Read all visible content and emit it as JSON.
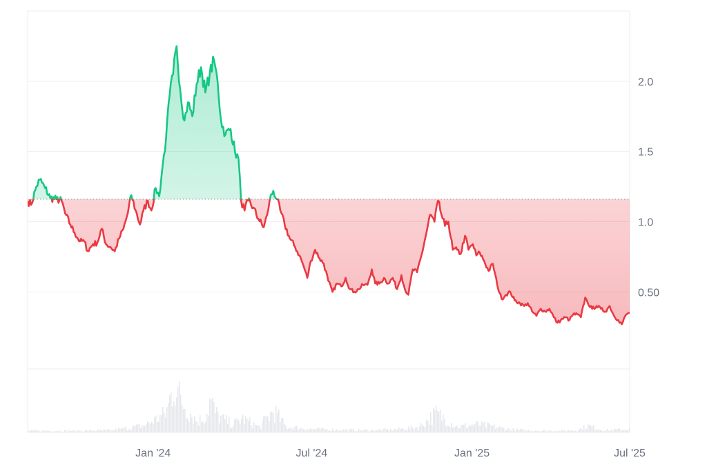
{
  "chart_data": {
    "type": "line",
    "title": "",
    "xlabel": "",
    "ylabel": "",
    "baseline": 1.16,
    "ylim": [
      -0.5,
      2.5
    ],
    "y_ticks": [
      {
        "value": 2.0,
        "label": "2.0"
      },
      {
        "value": 1.5,
        "label": "1.5"
      },
      {
        "value": 1.0,
        "label": "1.0"
      },
      {
        "value": 0.5,
        "label": "0.50"
      }
    ],
    "x_ticks": [
      {
        "date": "2024-01-01",
        "label": "Jan '24"
      },
      {
        "date": "2024-07-01",
        "label": "Jul '24"
      },
      {
        "date": "2025-01-01",
        "label": "Jan '25"
      },
      {
        "date": "2025-07-01",
        "label": "Jul '25"
      }
    ],
    "xlim": [
      "2023-08-10",
      "2025-07-01"
    ],
    "colors": {
      "up_line": "#16c784",
      "down_line": "#ea3943",
      "up_fill": "#16c784",
      "down_fill": "#ea3943",
      "grid": "#eeeeee",
      "baseline": "#888888",
      "volume": "#e6e8ec"
    },
    "price_series": [
      [
        "2023-08-10",
        1.15
      ],
      [
        "2023-08-14",
        1.12
      ],
      [
        "2023-08-20",
        1.25
      ],
      [
        "2023-08-24",
        1.3
      ],
      [
        "2023-08-30",
        1.24
      ],
      [
        "2023-09-05",
        1.17
      ],
      [
        "2023-09-12",
        1.16
      ],
      [
        "2023-09-18",
        1.15
      ],
      [
        "2023-09-22",
        1.06
      ],
      [
        "2023-09-28",
        0.98
      ],
      [
        "2023-10-03",
        0.92
      ],
      [
        "2023-10-09",
        0.86
      ],
      [
        "2023-10-14",
        0.86
      ],
      [
        "2023-10-18",
        0.79
      ],
      [
        "2023-10-24",
        0.84
      ],
      [
        "2023-10-29",
        0.85
      ],
      [
        "2023-11-03",
        0.95
      ],
      [
        "2023-11-08",
        0.84
      ],
      [
        "2023-11-13",
        0.82
      ],
      [
        "2023-11-18",
        0.79
      ],
      [
        "2023-11-23",
        0.88
      ],
      [
        "2023-11-28",
        0.95
      ],
      [
        "2023-12-03",
        1.06
      ],
      [
        "2023-12-07",
        1.19
      ],
      [
        "2023-12-12",
        1.08
      ],
      [
        "2023-12-17",
        0.98
      ],
      [
        "2023-12-21",
        1.08
      ],
      [
        "2023-12-26",
        1.15
      ],
      [
        "2023-12-30",
        1.08
      ],
      [
        "2024-01-04",
        1.24
      ],
      [
        "2024-01-08",
        1.18
      ],
      [
        "2024-01-12",
        1.4
      ],
      [
        "2024-01-16",
        1.6
      ],
      [
        "2024-01-20",
        1.9
      ],
      [
        "2024-01-24",
        2.05
      ],
      [
        "2024-01-28",
        2.25
      ],
      [
        "2024-02-01",
        1.95
      ],
      [
        "2024-02-06",
        1.72
      ],
      [
        "2024-02-10",
        1.85
      ],
      [
        "2024-02-15",
        1.75
      ],
      [
        "2024-02-20",
        1.98
      ],
      [
        "2024-02-25",
        2.1
      ],
      [
        "2024-03-01",
        1.92
      ],
      [
        "2024-03-06",
        2.05
      ],
      [
        "2024-03-11",
        2.15
      ],
      [
        "2024-03-15",
        2.0
      ],
      [
        "2024-03-19",
        1.72
      ],
      [
        "2024-03-24",
        1.62
      ],
      [
        "2024-03-30",
        1.66
      ],
      [
        "2024-04-04",
        1.5
      ],
      [
        "2024-04-08",
        1.45
      ],
      [
        "2024-04-11",
        1.15
      ],
      [
        "2024-04-15",
        1.08
      ],
      [
        "2024-04-19",
        1.15
      ],
      [
        "2024-04-25",
        1.1
      ],
      [
        "2024-05-01",
        1.02
      ],
      [
        "2024-05-07",
        0.96
      ],
      [
        "2024-05-11",
        1.05
      ],
      [
        "2024-05-14",
        1.16
      ],
      [
        "2024-05-18",
        1.22
      ],
      [
        "2024-05-22",
        1.16
      ],
      [
        "2024-05-26",
        1.08
      ],
      [
        "2024-05-31",
        0.98
      ],
      [
        "2024-06-06",
        0.88
      ],
      [
        "2024-06-12",
        0.82
      ],
      [
        "2024-06-17",
        0.76
      ],
      [
        "2024-06-22",
        0.68
      ],
      [
        "2024-06-26",
        0.6
      ],
      [
        "2024-06-30",
        0.72
      ],
      [
        "2024-07-05",
        0.8
      ],
      [
        "2024-07-10",
        0.74
      ],
      [
        "2024-07-15",
        0.7
      ],
      [
        "2024-07-20",
        0.58
      ],
      [
        "2024-07-25",
        0.5
      ],
      [
        "2024-07-30",
        0.56
      ],
      [
        "2024-08-04",
        0.54
      ],
      [
        "2024-08-09",
        0.6
      ],
      [
        "2024-08-14",
        0.52
      ],
      [
        "2024-08-19",
        0.5
      ],
      [
        "2024-08-24",
        0.52
      ],
      [
        "2024-08-29",
        0.55
      ],
      [
        "2024-09-03",
        0.55
      ],
      [
        "2024-09-08",
        0.66
      ],
      [
        "2024-09-12",
        0.56
      ],
      [
        "2024-09-17",
        0.56
      ],
      [
        "2024-09-22",
        0.6
      ],
      [
        "2024-09-27",
        0.56
      ],
      [
        "2024-10-02",
        0.6
      ],
      [
        "2024-10-07",
        0.52
      ],
      [
        "2024-10-12",
        0.62
      ],
      [
        "2024-10-16",
        0.52
      ],
      [
        "2024-10-20",
        0.48
      ],
      [
        "2024-10-25",
        0.66
      ],
      [
        "2024-10-30",
        0.64
      ],
      [
        "2024-11-04",
        0.76
      ],
      [
        "2024-11-09",
        0.9
      ],
      [
        "2024-11-14",
        1.05
      ],
      [
        "2024-11-19",
        1.0
      ],
      [
        "2024-11-23",
        1.15
      ],
      [
        "2024-11-27",
        1.05
      ],
      [
        "2024-12-01",
        0.97
      ],
      [
        "2024-12-05",
        1.0
      ],
      [
        "2024-12-10",
        0.8
      ],
      [
        "2024-12-15",
        0.8
      ],
      [
        "2024-12-19",
        0.77
      ],
      [
        "2024-12-24",
        0.9
      ],
      [
        "2024-12-28",
        0.8
      ],
      [
        "2025-01-02",
        0.84
      ],
      [
        "2025-01-06",
        0.76
      ],
      [
        "2025-01-10",
        0.78
      ],
      [
        "2025-01-15",
        0.72
      ],
      [
        "2025-01-20",
        0.65
      ],
      [
        "2025-01-25",
        0.7
      ],
      [
        "2025-01-30",
        0.55
      ],
      [
        "2025-02-04",
        0.45
      ],
      [
        "2025-02-09",
        0.48
      ],
      [
        "2025-02-14",
        0.5
      ],
      [
        "2025-02-19",
        0.44
      ],
      [
        "2025-02-25",
        0.42
      ],
      [
        "2025-03-02",
        0.4
      ],
      [
        "2025-03-06",
        0.42
      ],
      [
        "2025-03-11",
        0.36
      ],
      [
        "2025-03-16",
        0.33
      ],
      [
        "2025-03-21",
        0.38
      ],
      [
        "2025-03-26",
        0.36
      ],
      [
        "2025-03-31",
        0.38
      ],
      [
        "2025-04-05",
        0.32
      ],
      [
        "2025-04-09",
        0.28
      ],
      [
        "2025-04-13",
        0.3
      ],
      [
        "2025-04-18",
        0.32
      ],
      [
        "2025-04-23",
        0.3
      ],
      [
        "2025-04-27",
        0.34
      ],
      [
        "2025-05-02",
        0.34
      ],
      [
        "2025-05-06",
        0.32
      ],
      [
        "2025-05-11",
        0.46
      ],
      [
        "2025-05-14",
        0.42
      ],
      [
        "2025-05-19",
        0.38
      ],
      [
        "2025-05-24",
        0.4
      ],
      [
        "2025-05-29",
        0.38
      ],
      [
        "2025-06-03",
        0.36
      ],
      [
        "2025-06-08",
        0.4
      ],
      [
        "2025-06-13",
        0.33
      ],
      [
        "2025-06-18",
        0.3
      ],
      [
        "2025-06-22",
        0.27
      ],
      [
        "2025-06-27",
        0.34
      ],
      [
        "2025-07-01",
        0.35
      ]
    ],
    "volume_series": [
      [
        "2023-08-10",
        3
      ],
      [
        "2023-10-01",
        3
      ],
      [
        "2023-11-15",
        4
      ],
      [
        "2023-12-01",
        8
      ],
      [
        "2023-12-20",
        12
      ],
      [
        "2024-01-05",
        25
      ],
      [
        "2024-01-15",
        35
      ],
      [
        "2024-01-25",
        90
      ],
      [
        "2024-02-01",
        60
      ],
      [
        "2024-02-10",
        40
      ],
      [
        "2024-02-20",
        20
      ],
      [
        "2024-03-01",
        30
      ],
      [
        "2024-03-06",
        60
      ],
      [
        "2024-03-12",
        35
      ],
      [
        "2024-03-20",
        25
      ],
      [
        "2024-04-01",
        15
      ],
      [
        "2024-04-12",
        25
      ],
      [
        "2024-05-01",
        10
      ],
      [
        "2024-05-18",
        40
      ],
      [
        "2024-06-01",
        10
      ],
      [
        "2024-07-01",
        6
      ],
      [
        "2024-08-01",
        5
      ],
      [
        "2024-09-01",
        4
      ],
      [
        "2024-10-01",
        5
      ],
      [
        "2024-11-01",
        10
      ],
      [
        "2024-11-20",
        35
      ],
      [
        "2024-12-01",
        25
      ],
      [
        "2024-12-15",
        10
      ],
      [
        "2025-01-05",
        15
      ],
      [
        "2025-01-20",
        12
      ],
      [
        "2025-02-10",
        6
      ],
      [
        "2025-03-01",
        4
      ],
      [
        "2025-04-01",
        3
      ],
      [
        "2025-05-01",
        4
      ],
      [
        "2025-05-14",
        12
      ],
      [
        "2025-06-01",
        4
      ],
      [
        "2025-07-01",
        6
      ]
    ]
  }
}
